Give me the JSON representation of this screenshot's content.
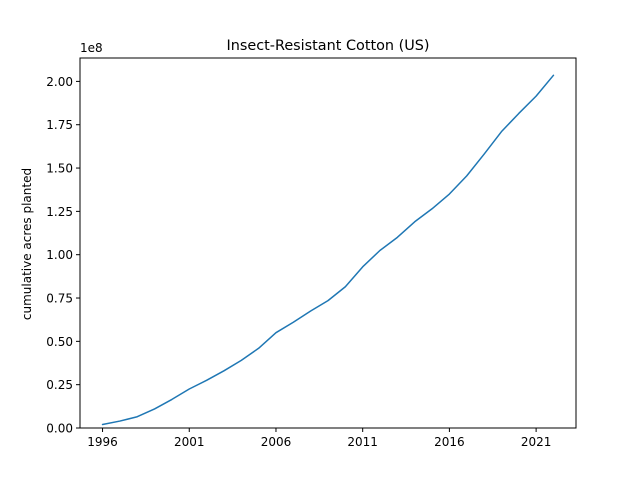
{
  "chart_data": {
    "type": "line",
    "title": "Insect-Resistant Cotton (US)",
    "xlabel": "",
    "ylabel": "cumulative acres planted",
    "y_offset_label": "1e8",
    "xlim": [
      1994.7,
      2023.3
    ],
    "ylim": [
      0,
      2.135
    ],
    "x_ticks": [
      1996,
      2001,
      2006,
      2011,
      2016,
      2021
    ],
    "x_tick_labels": [
      "1996",
      "2001",
      "2006",
      "2011",
      "2016",
      "2021"
    ],
    "y_ticks": [
      0,
      0.25,
      0.5,
      0.75,
      1.0,
      1.25,
      1.5,
      1.75,
      2.0
    ],
    "y_tick_labels": [
      "0.00",
      "0.25",
      "0.50",
      "0.75",
      "1.00",
      "1.25",
      "1.50",
      "1.75",
      "2.00"
    ],
    "grid": false,
    "legend": "none",
    "line_color": "#1f77b4",
    "series": [
      {
        "x": [
          1996,
          1997,
          1998,
          1999,
          2000,
          2001,
          2002,
          2003,
          2004,
          2005,
          2006,
          2007,
          2008,
          2009,
          2010,
          2011,
          2012,
          2013,
          2014,
          2015,
          2016,
          2017,
          2018,
          2019,
          2020,
          2021,
          2022
        ],
        "values": [
          0.02,
          0.04,
          0.065,
          0.11,
          0.165,
          0.225,
          0.275,
          0.33,
          0.39,
          0.46,
          0.55,
          0.61,
          0.675,
          0.735,
          0.815,
          0.93,
          1.025,
          1.1,
          1.19,
          1.265,
          1.35,
          1.455,
          1.58,
          1.71,
          1.815,
          1.915,
          2.035
        ]
      }
    ]
  }
}
